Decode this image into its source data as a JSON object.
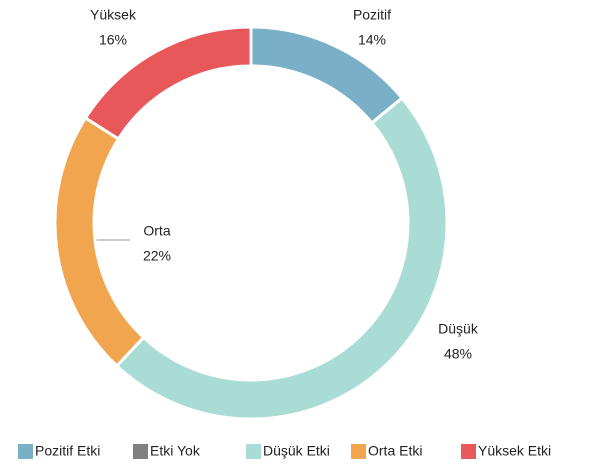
{
  "chart_data": {
    "type": "donut",
    "categories": [
      "Pozitif Etki",
      "Etki Yok",
      "Düşük Etki",
      "Orta Etki",
      "Yüksek Etki"
    ],
    "values": [
      14,
      0,
      48,
      22,
      16
    ],
    "value_labels": [
      "14%",
      null,
      "48%",
      "22%",
      "16%"
    ],
    "slice_labels": [
      "Pozitif",
      null,
      "Düşük",
      "Orta",
      "Yüksek"
    ],
    "colors": [
      "#7aafc8",
      "#808080",
      "#a8dcd5",
      "#f0a54e",
      "#e8585a"
    ],
    "legend": "bottom"
  }
}
